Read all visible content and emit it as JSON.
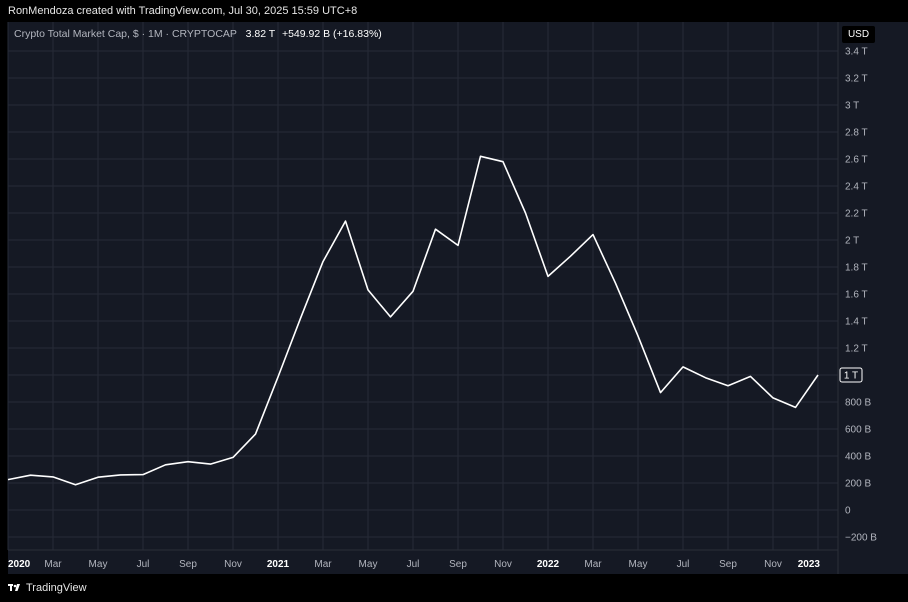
{
  "header": {
    "credit": "RonMendoza created with TradingView.com, Jul 30, 2025 15:59 UTC+8"
  },
  "legend": {
    "symbol": "Crypto Total Market Cap, $ · 1M · CRYPTOCAP",
    "last_value": "3.82 T",
    "change": "+549.92 B (+16.83%)"
  },
  "currency_badge": "USD",
  "footer": {
    "brand": "TradingView",
    "logo_icon": "tradingview-logo-icon"
  },
  "colors": {
    "background": "#151924",
    "line": "#ffffff",
    "grid": "#262b37",
    "text": "#b2b5be"
  },
  "chart_data": {
    "type": "line",
    "series": [
      {
        "x": [
          "2020-01",
          "2020-02",
          "2020-03",
          "2020-04",
          "2020-05",
          "2020-06",
          "2020-07",
          "2020-08",
          "2020-09",
          "2020-10",
          "2020-11",
          "2020-12",
          "2021-01",
          "2021-02",
          "2021-03",
          "2021-04",
          "2021-05",
          "2021-06",
          "2021-07",
          "2021-08",
          "2021-09",
          "2021-10",
          "2021-11",
          "2021-12",
          "2022-01",
          "2022-02",
          "2022-03",
          "2022-04",
          "2022-05",
          "2022-06",
          "2022-07",
          "2022-08",
          "2022-09",
          "2022-10",
          "2022-11",
          "2022-12",
          "2023-01"
        ],
        "y_billions": [
          225,
          258,
          245,
          187,
          243,
          260,
          262,
          335,
          358,
          340,
          390,
          562,
          985,
          1420,
          1840,
          2140,
          1630,
          1430,
          1620,
          2080,
          1960,
          2620,
          2580,
          2200,
          1730,
          1880,
          2040,
          1680,
          1290,
          870,
          1060,
          980,
          920,
          990,
          830,
          760,
          1000
        ]
      }
    ],
    "last_value_label": "1 T",
    "y_ticks": [
      "3.4 T",
      "3.2 T",
      "3 T",
      "2.8 T",
      "2.6 T",
      "2.4 T",
      "2.2 T",
      "2 T",
      "1.8 T",
      "1.6 T",
      "1.4 T",
      "1.2 T",
      "1 T",
      "800 B",
      "600 B",
      "400 B",
      "200 B",
      "0",
      "−200 B"
    ],
    "x_ticks": [
      "2020",
      "Mar",
      "May",
      "Jul",
      "Sep",
      "Nov",
      "2021",
      "Mar",
      "May",
      "Jul",
      "Sep",
      "Nov",
      "2022",
      "Mar",
      "May",
      "Jul",
      "Sep",
      "Nov",
      "2023"
    ],
    "y_range_billions": [
      -200,
      3400
    ],
    "grid": true
  }
}
